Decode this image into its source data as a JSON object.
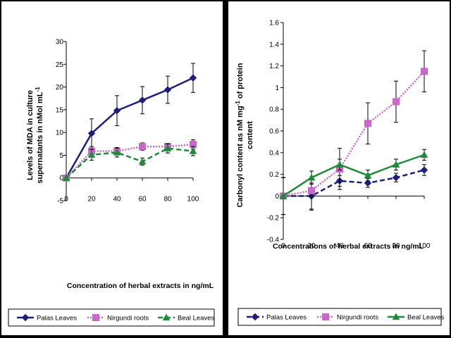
{
  "chart_data": [
    {
      "type": "line",
      "x": [
        0,
        20,
        40,
        60,
        80,
        100
      ],
      "xlabel": "Concentration of herbal extracts in ng/mL",
      "ylabel_line1": "Levels of MDA in culture",
      "ylabel_line2": "supernatants in nMol mL",
      "ylabel_sup": "-1",
      "ylim": [
        -5,
        30
      ],
      "yticks": [
        -5,
        0,
        5,
        10,
        15,
        20,
        25,
        30
      ],
      "xticks": [
        0,
        20,
        40,
        60,
        80,
        100
      ],
      "grid": false,
      "legend_position": "bottom",
      "series": [
        {
          "name": "Palas Leaves",
          "color": "#1f1f7a",
          "dash": "solid",
          "marker": "diamond",
          "values": [
            0,
            9.8,
            14.8,
            17.1,
            19.4,
            22.0
          ],
          "errors": [
            0,
            3.2,
            3.3,
            3.0,
            3.0,
            3.2
          ]
        },
        {
          "name": "Nirgundi roots",
          "color": "#cc66cc",
          "dash": "dotted",
          "marker": "square",
          "values": [
            0,
            5.9,
            5.9,
            6.9,
            6.9,
            7.4
          ],
          "errors": [
            0,
            1.0,
            0.8,
            0.8,
            0.7,
            1.0
          ]
        },
        {
          "name": "Beal Leaves",
          "color": "#1f8a3a",
          "dash": "dashed",
          "marker": "triangle",
          "values": [
            0,
            5.1,
            5.6,
            3.6,
            6.5,
            5.9
          ],
          "errors": [
            0,
            1.2,
            1.0,
            0.8,
            1.0,
            1.0
          ]
        }
      ]
    },
    {
      "type": "line",
      "x": [
        0,
        20,
        40,
        60,
        80,
        100
      ],
      "xlabel": "Concentrations of herbal extracts in ng/mL",
      "ylabel_line1": "Carbonyl content as nM mg",
      "ylabel_sup": "-1",
      "ylabel_line1_tail": " of protein",
      "ylabel_line2": "content",
      "ylim": [
        -0.4,
        1.6
      ],
      "yticks": [
        -0.4,
        -0.2,
        0,
        0.2,
        0.4,
        0.6,
        0.8,
        1,
        1.2,
        1.4,
        1.6
      ],
      "xticks": [
        0,
        20,
        40,
        60,
        80,
        100
      ],
      "grid": false,
      "legend_position": "bottom",
      "series": [
        {
          "name": "Palas Leaves",
          "color": "#1f1f7a",
          "dash": "dashed",
          "marker": "diamond",
          "values": [
            0,
            0.0,
            0.14,
            0.12,
            0.17,
            0.24
          ],
          "errors": [
            0.17,
            0.12,
            0.05,
            0.04,
            0.04,
            0.05
          ]
        },
        {
          "name": "Nirgundi roots",
          "color": "#cc66cc",
          "dash": "dotted",
          "marker": "square",
          "values": [
            0,
            0.05,
            0.25,
            0.67,
            0.87,
            1.15
          ],
          "errors": [
            0.17,
            0.18,
            0.19,
            0.19,
            0.19,
            0.19
          ]
        },
        {
          "name": "Beal Leaves",
          "color": "#1f8a3a",
          "dash": "solid",
          "marker": "triangle",
          "values": [
            0,
            0.17,
            0.29,
            0.19,
            0.29,
            0.38
          ],
          "errors": [
            0.17,
            0.06,
            0.05,
            0.05,
            0.05,
            0.05
          ]
        }
      ]
    }
  ]
}
